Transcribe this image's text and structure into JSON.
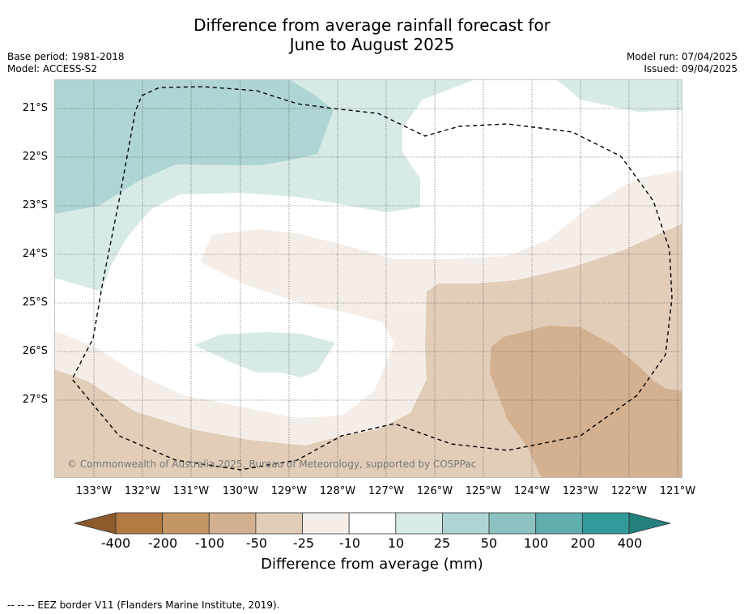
{
  "title_line1": "Difference from average rainfall forecast for",
  "title_line2": "June to August 2025",
  "base_period": "Base period: 1981-2018",
  "model": "Model: ACCESS-S2",
  "model_run": "Model run: 07/04/2025",
  "issued": "Issued: 09/04/2025",
  "copyright": "© Commonwealth of Australia 2025, Bureau of Meteorology, supported by COSPPac",
  "footnote": "--  --  -- EEZ border V11 (Flanders Marine Institute, 2019).",
  "colorbar": {
    "title": "Difference from average (mm)",
    "labels": [
      "-400",
      "-200",
      "-100",
      "-50",
      "-25",
      "-10",
      "10",
      "25",
      "50",
      "100",
      "200",
      "400"
    ],
    "colors": [
      "#8c5a2b",
      "#b07a42",
      "#c39565",
      "#d3b08f",
      "#e2cdb9",
      "#f5eee8",
      "#ffffff",
      "#d7eae8",
      "#aed5d4",
      "#8bc2c1",
      "#5fadac",
      "#34999a",
      "#23807f"
    ]
  },
  "map": {
    "lat_labels": [
      "21°S",
      "22°S",
      "23°S",
      "24°S",
      "25°S",
      "26°S",
      "27°S"
    ],
    "lon_labels": [
      "133°W",
      "132°W",
      "131°W",
      "130°W",
      "129°W",
      "128°W",
      "127°W",
      "126°W",
      "125°W",
      "124°W",
      "123°W",
      "122°W",
      "121°W"
    ],
    "lon_range": [
      -133.8,
      -120.9
    ],
    "lat_range": [
      -28.6,
      -20.4
    ]
  }
}
